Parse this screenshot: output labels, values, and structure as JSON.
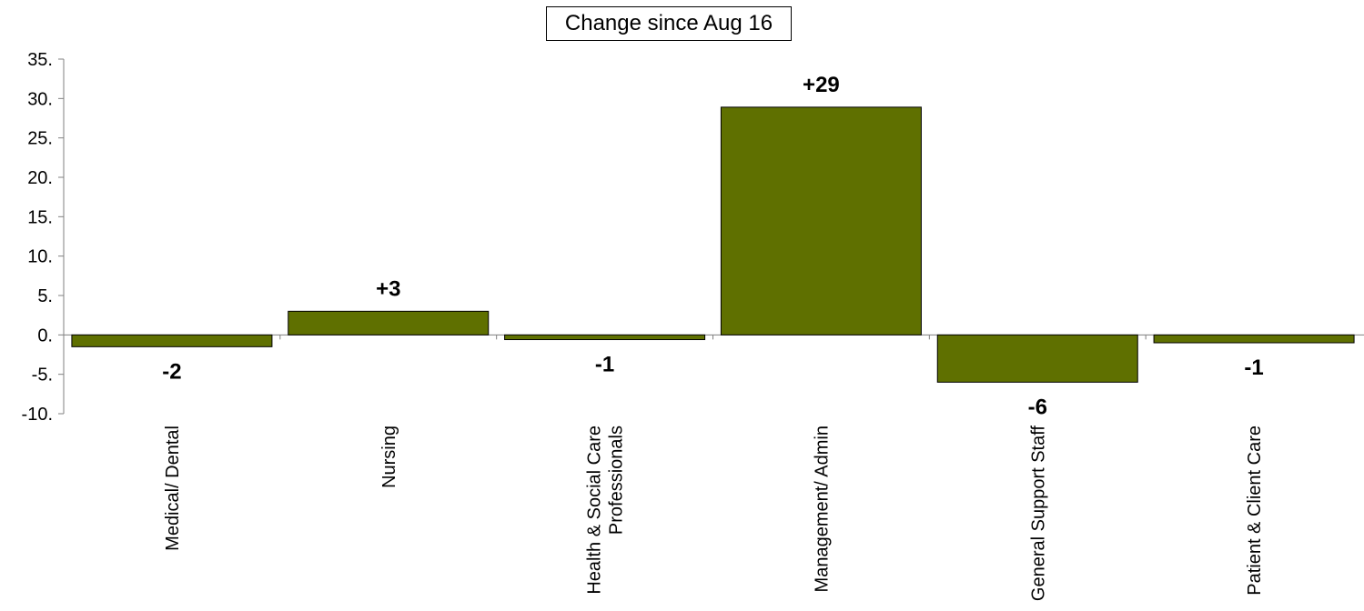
{
  "chart_data": {
    "type": "bar",
    "title": "Change since Aug 16",
    "categories": [
      [
        "Medical/ Dental"
      ],
      [
        "Nursing"
      ],
      [
        "Health & Social Care",
        "Professionals"
      ],
      [
        "Management/ Admin"
      ],
      [
        "General Support Staff"
      ],
      [
        "Patient & Client Care"
      ]
    ],
    "values": [
      -1.5,
      3.0,
      -0.6,
      28.9,
      -6.0,
      -1.0
    ],
    "data_labels": [
      "-2",
      "+3",
      "-1",
      "+29",
      "-6",
      "-1"
    ],
    "ylim": [
      -10,
      35
    ],
    "y_ticks": [
      35,
      30,
      25,
      20,
      15,
      10,
      5,
      0,
      -5,
      -10
    ],
    "y_tick_labels": [
      "35.",
      "30.",
      "25.",
      "20.",
      "15.",
      "10.",
      "5.",
      "0.",
      "-5.",
      "-10."
    ],
    "grid": false,
    "xlabel": "",
    "ylabel": "",
    "bar_color": "#5f7000"
  }
}
